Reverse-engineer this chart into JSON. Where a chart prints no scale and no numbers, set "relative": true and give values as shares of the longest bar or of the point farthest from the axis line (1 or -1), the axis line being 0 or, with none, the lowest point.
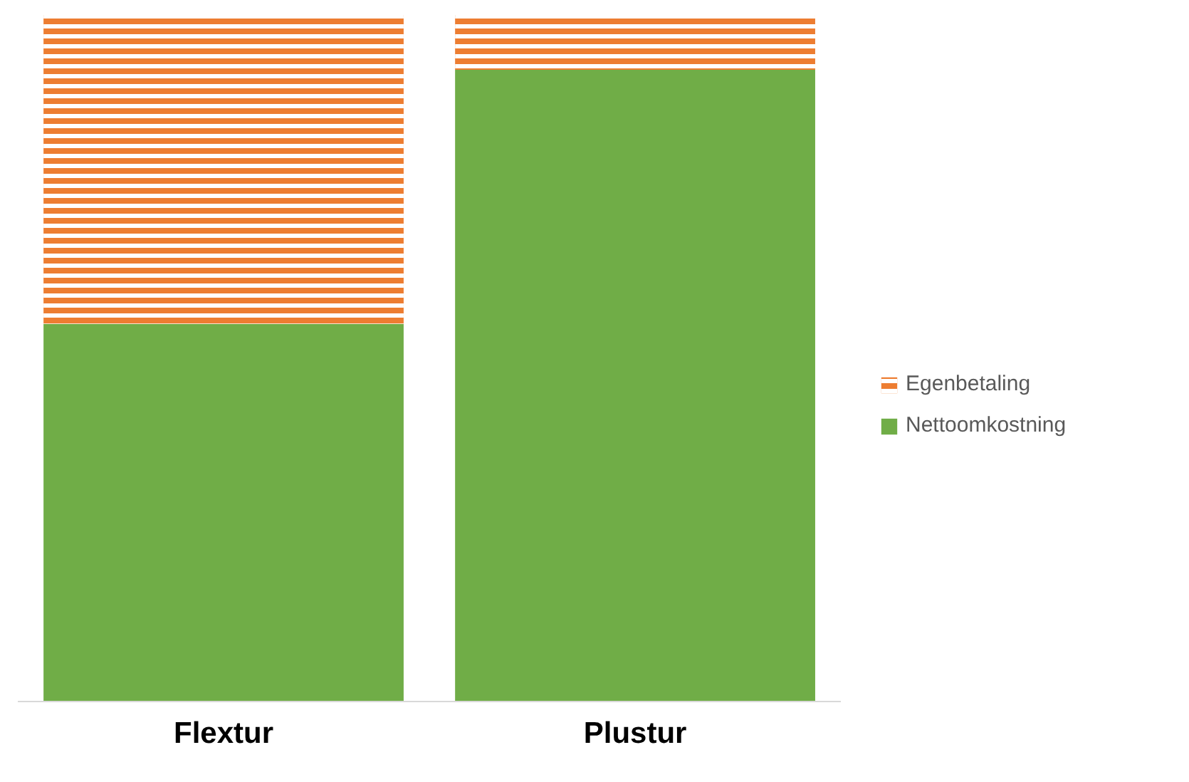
{
  "chart_data": {
    "type": "bar",
    "stacked": true,
    "relative": true,
    "categories": [
      "Flextur",
      "Plustur"
    ],
    "series": [
      {
        "name": "Nettoomkostning",
        "color": "#70ad47",
        "values": [
          0.55,
          0.92
        ]
      },
      {
        "name": "Egenbetaling",
        "color": "#ed7d31",
        "values": [
          0.45,
          0.08
        ]
      }
    ],
    "grid": false,
    "legend": "right"
  }
}
